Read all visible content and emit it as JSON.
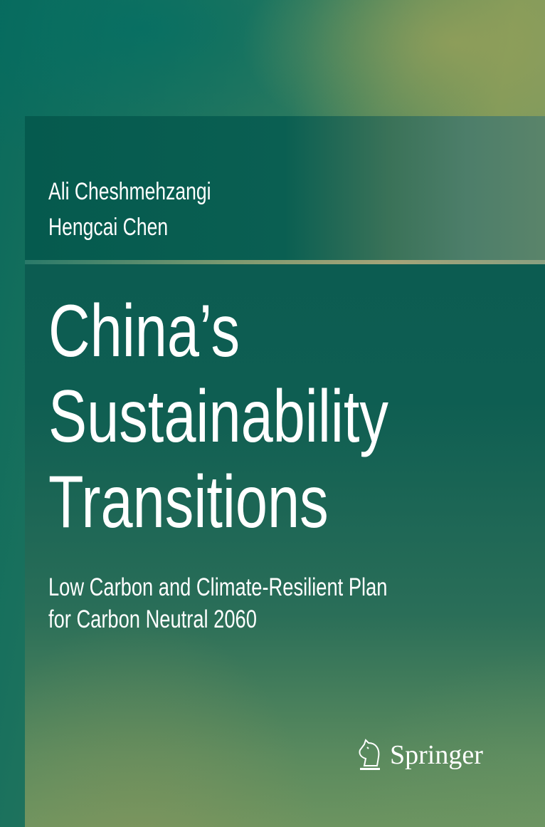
{
  "authors": [
    "Ali Cheshmehzangi",
    "Hengcai Chen"
  ],
  "title": [
    "China’s",
    "Sustainability",
    "Transitions"
  ],
  "subtitle": [
    "Low Carbon and Climate-Resilient Plan",
    "for Carbon Neutral 2060"
  ],
  "publisher": {
    "name": "Springer",
    "icon": "chess-knight-icon"
  },
  "colors": {
    "primary": "#0a5a50",
    "accent": "#7f9a5a",
    "text": "#ffffff"
  }
}
